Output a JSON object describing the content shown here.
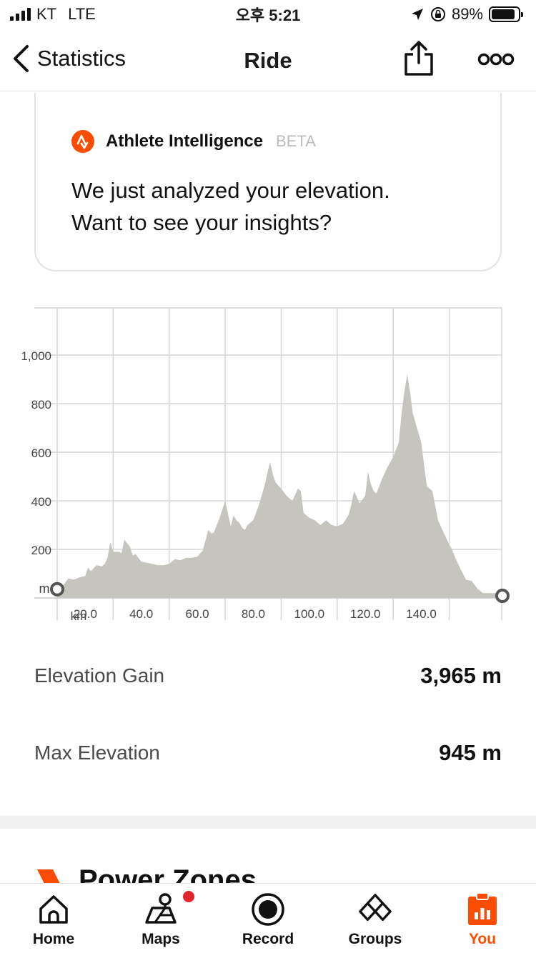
{
  "status_bar": {
    "carrier": "KT",
    "network": "LTE",
    "time": "오후 5:21",
    "battery_percent": "89%",
    "battery_level": 0.89
  },
  "nav": {
    "back_label": "Statistics",
    "title": "Ride"
  },
  "ai_card": {
    "brand": "Athlete Intelligence",
    "tag": "BETA",
    "message_line1": "We just analyzed your elevation.",
    "message_line2": "Want to see your insights?",
    "logo_color": "#fc4c02"
  },
  "chart_data": {
    "type": "area",
    "xlabel": "km",
    "ylabel": "m",
    "xlim": [
      0,
      159
    ],
    "ylim": [
      0,
      1000
    ],
    "x_ticks": [
      "20.0",
      "40.0",
      "60.0",
      "80.0",
      "100.0",
      "120.0",
      "140.0"
    ],
    "y_ticks": [
      "200",
      "400",
      "600",
      "800",
      "1,000"
    ],
    "fill_color": "#c5c4be",
    "series": [
      {
        "x": [
          0,
          2,
          4,
          6,
          8,
          10,
          11,
          12,
          14,
          16,
          17,
          18,
          19,
          20,
          22,
          23,
          24,
          26,
          27,
          28,
          30,
          32,
          34,
          36,
          38,
          40,
          42,
          44,
          46,
          48,
          50,
          52,
          54,
          55,
          56,
          58,
          60,
          62,
          63,
          64,
          65,
          66,
          67,
          68,
          70,
          72,
          74,
          76,
          77,
          78,
          80,
          82,
          84,
          86,
          87,
          88,
          90,
          92,
          94,
          96,
          98,
          100,
          102,
          104,
          105,
          106,
          108,
          110,
          111,
          112,
          113,
          114,
          116,
          118,
          120,
          122,
          123,
          124,
          125,
          126,
          127,
          128,
          130,
          131,
          132,
          134,
          136,
          138,
          140,
          141,
          142,
          144,
          146,
          148,
          150,
          152,
          154,
          155,
          156,
          158,
          159
        ],
        "values": [
          30,
          50,
          80,
          75,
          85,
          90,
          125,
          110,
          135,
          130,
          140,
          165,
          230,
          190,
          190,
          185,
          240,
          210,
          175,
          180,
          150,
          145,
          140,
          135,
          135,
          140,
          160,
          155,
          165,
          165,
          170,
          195,
          280,
          265,
          270,
          330,
          400,
          295,
          340,
          320,
          310,
          290,
          280,
          300,
          320,
          380,
          460,
          560,
          510,
          475,
          450,
          420,
          400,
          450,
          440,
          350,
          330,
          320,
          300,
          320,
          300,
          295,
          305,
          340,
          380,
          440,
          390,
          420,
          520,
          470,
          440,
          430,
          490,
          540,
          580,
          640,
          760,
          850,
          920,
          850,
          760,
          720,
          640,
          550,
          460,
          440,
          320,
          270,
          220,
          200,
          170,
          120,
          75,
          70,
          40,
          20,
          20,
          20,
          20,
          20,
          20
        ]
      }
    ]
  },
  "stats": [
    {
      "label": "Elevation Gain",
      "value": "3,965 m"
    },
    {
      "label": "Max Elevation",
      "value": "945 m"
    }
  ],
  "section": {
    "title": "Power Zones",
    "icon": "power-zones-icon",
    "accent": "#fc4c02"
  },
  "tabs": [
    {
      "label": "Home",
      "icon": "home-icon"
    },
    {
      "label": "Maps",
      "icon": "maps-icon"
    },
    {
      "label": "Record",
      "icon": "record-icon"
    },
    {
      "label": "Groups",
      "icon": "groups-icon"
    },
    {
      "label": "You",
      "icon": "you-icon",
      "active": true
    }
  ]
}
